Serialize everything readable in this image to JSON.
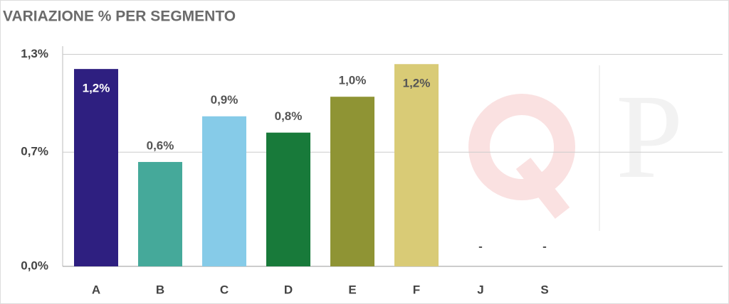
{
  "chart_data": {
    "type": "bar",
    "title": "VARIAZIONE % PER SEGMENTO",
    "categories": [
      "A",
      "B",
      "C",
      "D",
      "E",
      "F",
      "J",
      "S"
    ],
    "values": [
      1.21,
      0.64,
      0.92,
      0.82,
      1.04,
      1.24,
      null,
      null
    ],
    "value_labels": [
      "1,2%",
      "0,6%",
      "0,9%",
      "0,8%",
      "1,0%",
      "1,2%",
      "-",
      "-"
    ],
    "colors": [
      "#2e1f80",
      "#45a99a",
      "#86cbe8",
      "#187a3a",
      "#8f9434",
      "#d9cb76",
      "#888888",
      "#888888"
    ],
    "ylim": [
      0,
      1.35
    ],
    "yticks": [
      {
        "value": 0,
        "label": "0,0%"
      },
      {
        "value": 0.7,
        "label": "0,7%"
      },
      {
        "value": 1.3,
        "label": "1,3%"
      }
    ],
    "grid": true
  }
}
